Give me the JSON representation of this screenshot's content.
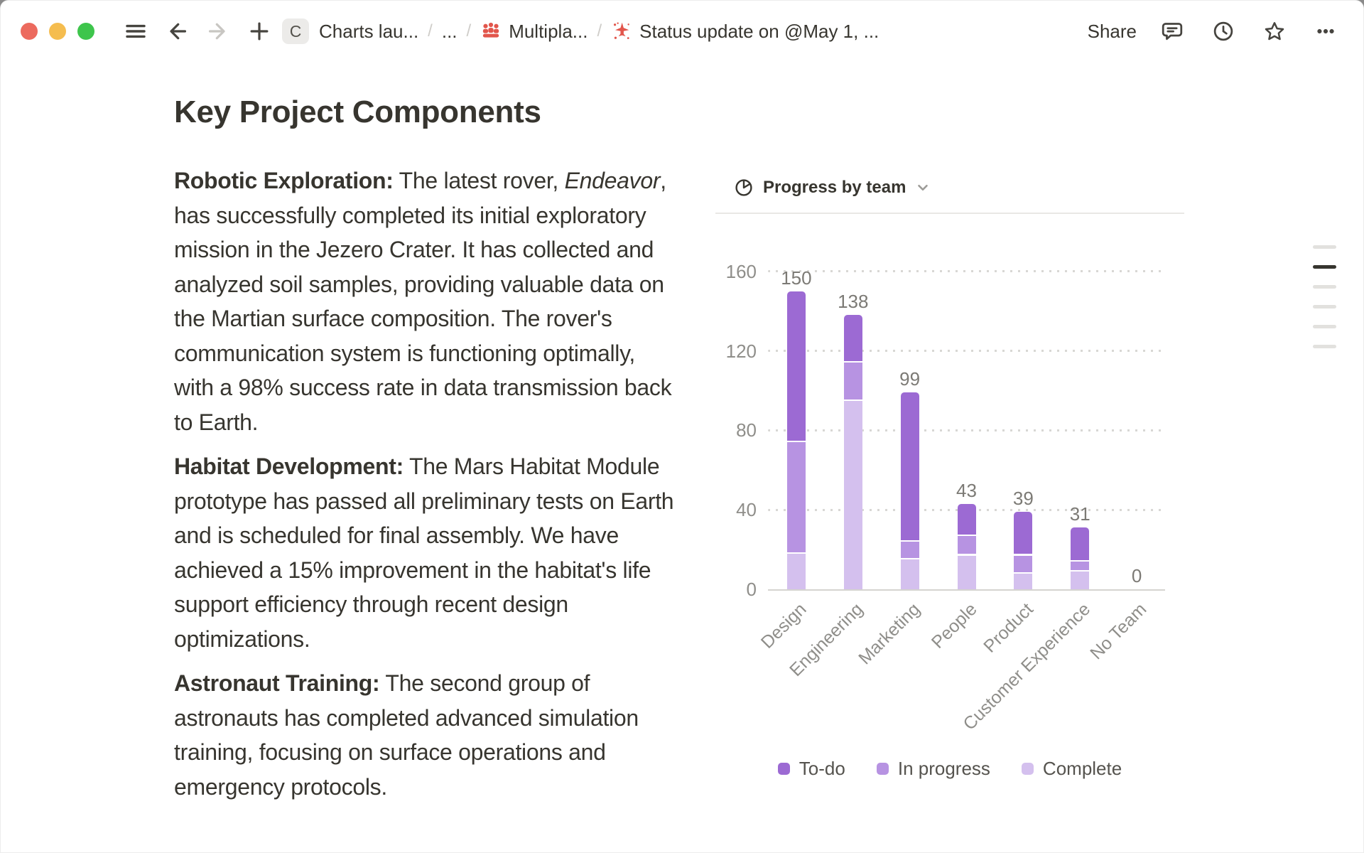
{
  "topbar": {
    "workspace_badge": "C",
    "share_label": "Share",
    "breadcrumb": {
      "sep": "/",
      "items": [
        {
          "label": "Charts lau..."
        },
        {
          "label": "..."
        },
        {
          "label": "Multipla...",
          "icon": "people-icon"
        },
        {
          "label": "Status update on @May 1, ...",
          "icon": "plane-icon"
        }
      ]
    }
  },
  "document": {
    "title": "Key Project Components",
    "paragraphs": [
      {
        "label": "Robotic Exploration:",
        "lead": " The latest rover, ",
        "italic": "Endeavor",
        "text": ", has successfully completed its initial exploratory mission in the Jezero Crater. It has collected and analyzed soil samples, providing valuable data on the Martian surface composition. The rover's communication system is functioning optimally, with a 98% success rate in data transmission back to Earth."
      },
      {
        "label": "Habitat Development:",
        "text": " The Mars Habitat Module prototype has passed all preliminary tests on Earth and is scheduled for final assembly. We have achieved a 15% improvement in the habitat's life support efficiency through recent design optimizations."
      },
      {
        "label": "Astronaut Training:",
        "text": " The second group of astronauts has completed advanced simulation training, focusing on surface operations and emergency protocols."
      }
    ]
  },
  "chart_data": {
    "type": "bar",
    "stacked": true,
    "title": "Progress by team",
    "header_icon": "pie-chart-icon",
    "categories": [
      "Design",
      "Engineering",
      "Marketing",
      "People",
      "Product",
      "Customer Experience",
      "No Team"
    ],
    "series": [
      {
        "name": "Complete",
        "color": "#d4c0ee",
        "values": [
          18,
          95,
          15,
          17,
          8,
          9,
          0
        ]
      },
      {
        "name": "In progress",
        "color": "#b793e2",
        "values": [
          56,
          19,
          9,
          10,
          9,
          5,
          0
        ]
      },
      {
        "name": "To-do",
        "color": "#9c6ad3",
        "values": [
          76,
          24,
          75,
          16,
          22,
          17,
          0
        ]
      }
    ],
    "totals": [
      150,
      138,
      99,
      43,
      39,
      31,
      0
    ],
    "y_ticks": [
      0,
      40,
      80,
      120,
      160
    ],
    "ylim": [
      0,
      160
    ],
    "xlabel": "",
    "ylabel": "",
    "grid": "dotted-horizontal",
    "legend": [
      "To-do",
      "In progress",
      "Complete"
    ],
    "legend_position": "bottom"
  },
  "outline": {
    "line_count": 6,
    "active_line": 2
  },
  "icons": {
    "topbar": [
      "hamburger-icon",
      "back-icon",
      "forward-icon",
      "plus-icon",
      "comment-icon",
      "history-icon",
      "star-icon",
      "more-icon"
    ],
    "breadcrumb": [
      "people-icon",
      "plane-icon"
    ],
    "chart": [
      "pie-chart-icon",
      "chevron-down-icon"
    ],
    "icon_red": "#e2564c",
    "icon_dark": "#4a4843"
  }
}
